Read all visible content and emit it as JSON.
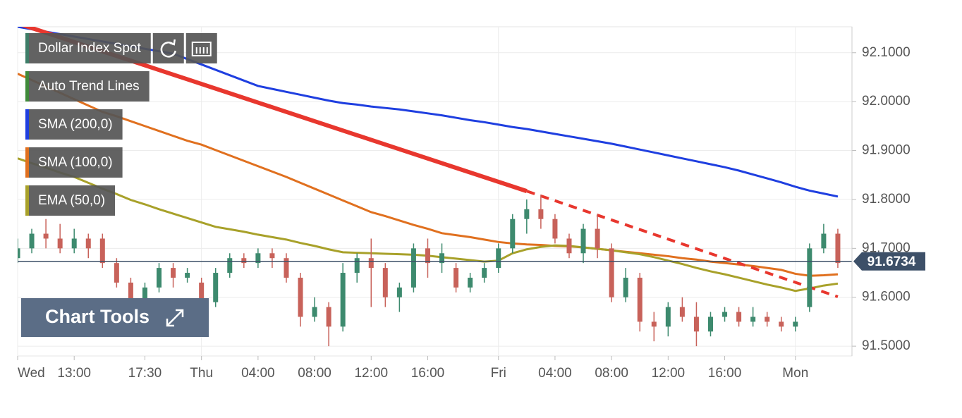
{
  "chart_data": {
    "type": "candlestick",
    "categories": [
      "Wed",
      null,
      null,
      null,
      "13:00",
      null,
      null,
      null,
      null,
      "17:30",
      null,
      null,
      null,
      "Thu",
      null,
      null,
      null,
      "04:00",
      null,
      null,
      null,
      "08:00",
      null,
      null,
      null,
      "12:00",
      null,
      null,
      null,
      "16:00",
      null,
      null,
      null,
      null,
      "Fri",
      null,
      null,
      null,
      "04:00",
      null,
      null,
      null,
      "08:00",
      null,
      null,
      null,
      "12:00",
      null,
      null,
      null,
      "16:00",
      null,
      null,
      null,
      null,
      "Mon",
      null,
      null,
      null
    ],
    "series": [
      {
        "name": "Dollar Index Spot",
        "type": "candlestick",
        "marker_color": "#3e7d68",
        "up_color": "#3d8a6e",
        "down_color": "#c8625a",
        "open": [
          91.68,
          91.7,
          91.73,
          91.72,
          91.7,
          91.72,
          91.72,
          91.67,
          91.63,
          91.59,
          91.62,
          91.66,
          91.64,
          91.63,
          91.59,
          91.65,
          91.68,
          91.67,
          91.69,
          91.68,
          91.64,
          91.56,
          91.58,
          91.54,
          91.65,
          91.68,
          91.66,
          91.6,
          91.62,
          91.7,
          91.67,
          91.66,
          91.62,
          91.64,
          91.66,
          91.7,
          91.76,
          91.78,
          91.76,
          91.72,
          91.69,
          91.74,
          91.7,
          91.6,
          91.64,
          91.55,
          91.54,
          91.58,
          91.56,
          91.53,
          91.56,
          91.57,
          91.55,
          91.56,
          91.55,
          91.54,
          91.58,
          91.7,
          91.73
        ],
        "high": [
          91.72,
          91.74,
          91.76,
          91.75,
          91.74,
          91.73,
          91.73,
          91.68,
          91.64,
          91.63,
          91.67,
          91.67,
          91.66,
          91.64,
          91.66,
          91.69,
          91.69,
          91.7,
          91.7,
          91.69,
          91.65,
          91.6,
          91.59,
          91.67,
          91.69,
          91.72,
          91.67,
          91.63,
          91.71,
          91.72,
          91.71,
          91.67,
          91.65,
          91.67,
          91.71,
          91.77,
          91.8,
          91.81,
          91.77,
          91.73,
          91.75,
          91.77,
          91.71,
          91.66,
          91.65,
          91.57,
          91.59,
          91.6,
          91.59,
          91.57,
          91.58,
          91.58,
          91.58,
          91.57,
          91.56,
          91.56,
          91.71,
          91.75,
          91.74
        ],
        "low": [
          91.67,
          91.69,
          91.7,
          91.69,
          91.69,
          91.68,
          91.66,
          91.62,
          91.57,
          91.58,
          91.61,
          91.62,
          91.63,
          91.57,
          91.58,
          91.64,
          91.66,
          91.66,
          91.66,
          91.63,
          91.54,
          91.55,
          91.5,
          91.53,
          91.63,
          91.58,
          91.58,
          91.57,
          91.61,
          91.64,
          91.65,
          91.61,
          91.61,
          91.63,
          91.65,
          91.69,
          91.73,
          91.74,
          91.71,
          91.68,
          91.67,
          91.68,
          91.59,
          91.59,
          91.53,
          91.51,
          91.52,
          91.55,
          91.5,
          91.52,
          91.55,
          91.54,
          91.54,
          91.54,
          91.53,
          91.53,
          91.57,
          91.69,
          91.66
        ],
        "close": [
          91.7,
          91.73,
          91.72,
          91.7,
          91.72,
          91.7,
          91.67,
          91.63,
          91.59,
          91.62,
          91.66,
          91.64,
          91.65,
          91.59,
          91.65,
          91.68,
          91.67,
          91.69,
          91.68,
          91.64,
          91.56,
          91.58,
          91.54,
          91.65,
          91.68,
          91.66,
          91.6,
          91.62,
          91.7,
          91.67,
          91.69,
          91.62,
          91.64,
          91.66,
          91.7,
          91.76,
          91.78,
          91.76,
          91.72,
          91.69,
          91.74,
          91.7,
          91.6,
          91.64,
          91.55,
          91.54,
          91.58,
          91.56,
          91.53,
          91.56,
          91.57,
          91.55,
          91.56,
          91.55,
          91.54,
          91.55,
          91.7,
          91.73,
          91.67
        ]
      },
      {
        "name": "SMA (200,0)",
        "type": "line",
        "color": "#1f3fe0",
        "values": [
          92.153,
          92.148,
          92.143,
          92.138,
          92.133,
          92.128,
          92.123,
          92.118,
          92.113,
          92.108,
          92.103,
          92.098,
          92.087,
          92.076,
          92.065,
          92.054,
          92.043,
          92.032,
          92.026,
          92.02,
          92.014,
          92.008,
          92.002,
          91.997,
          91.994,
          91.99,
          91.987,
          91.984,
          91.98,
          91.976,
          91.972,
          91.967,
          91.962,
          91.958,
          91.953,
          91.948,
          91.944,
          91.939,
          91.934,
          91.929,
          91.924,
          91.919,
          91.914,
          91.908,
          91.902,
          91.896,
          91.89,
          91.884,
          91.878,
          91.872,
          91.866,
          91.859,
          91.851,
          91.843,
          91.835,
          91.826,
          91.818,
          91.812,
          91.806
        ]
      },
      {
        "name": "SMA (100,0)",
        "type": "line",
        "color": "#e0701f",
        "values": [
          92.057,
          92.044,
          92.031,
          92.018,
          92.005,
          91.992,
          91.979,
          91.97,
          91.96,
          91.95,
          91.94,
          91.93,
          91.92,
          91.912,
          91.901,
          91.89,
          91.879,
          91.868,
          91.857,
          91.846,
          91.834,
          91.822,
          91.81,
          91.798,
          91.786,
          91.774,
          91.766,
          91.757,
          91.748,
          91.74,
          91.731,
          91.727,
          91.723,
          91.718,
          91.713,
          91.71,
          91.708,
          91.707,
          91.705,
          91.704,
          91.702,
          91.699,
          91.696,
          91.693,
          91.69,
          91.687,
          91.684,
          91.68,
          91.677,
          91.673,
          91.67,
          91.667,
          91.664,
          91.66,
          91.656,
          91.648,
          91.644,
          91.645,
          91.647
        ]
      },
      {
        "name": "EMA (50,0)",
        "type": "line",
        "color": "#a8a12a",
        "values": [
          91.884,
          91.874,
          91.865,
          91.855,
          91.846,
          91.834,
          91.822,
          91.811,
          91.799,
          91.79,
          91.78,
          91.771,
          91.762,
          91.753,
          91.744,
          91.739,
          91.734,
          91.728,
          91.723,
          91.718,
          91.711,
          91.705,
          91.698,
          91.692,
          91.691,
          91.69,
          91.689,
          91.688,
          91.687,
          91.685,
          91.682,
          91.679,
          91.676,
          91.673,
          91.675,
          91.69,
          91.698,
          91.703,
          91.706,
          91.705,
          91.702,
          91.699,
          91.696,
          91.692,
          91.688,
          91.682,
          91.675,
          91.668,
          91.66,
          91.653,
          91.647,
          91.64,
          91.633,
          91.626,
          91.62,
          91.613,
          91.618,
          91.624,
          91.628
        ]
      }
    ],
    "trend_line": {
      "name": "Auto Trend Lines",
      "color": "#e8372e",
      "marker_color": "#3f8a3a",
      "x": [
        0,
        36,
        58
      ],
      "values": [
        92.16,
        91.817,
        91.601
      ],
      "dashed_from": 1
    },
    "last_price": 91.6734,
    "ylim": [
      91.48,
      92.153
    ],
    "yticks": [
      {
        "value": 91.5,
        "label": "91.5000"
      },
      {
        "value": 91.6,
        "label": "91.6000"
      },
      {
        "value": 91.7,
        "label": "91.7000"
      },
      {
        "value": 91.8,
        "label": "91.8000"
      },
      {
        "value": 91.9,
        "label": "91.9000"
      },
      {
        "value": 92.0,
        "label": "92.0000"
      },
      {
        "value": 92.1,
        "label": "92.1000"
      }
    ],
    "grid": true
  },
  "ui": {
    "chart_tools": "Chart Tools"
  }
}
